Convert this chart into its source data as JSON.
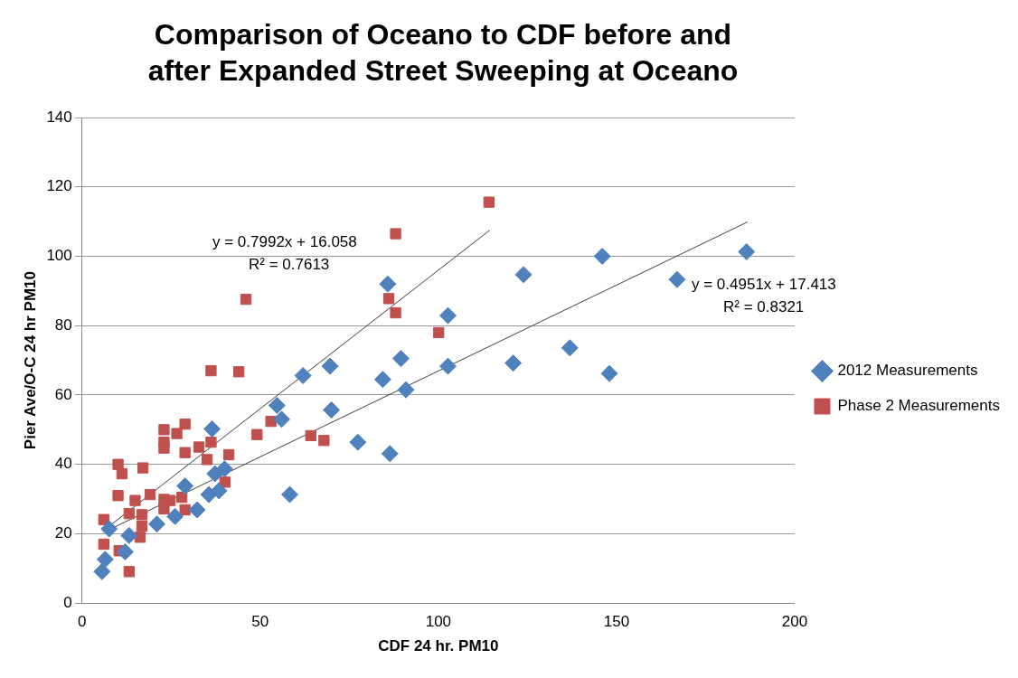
{
  "chart_data": {
    "type": "scatter",
    "title": "Comparison of Oceano to CDF before and after Expanded Street Sweeping at Oceano",
    "xlabel": "CDF 24 hr. PM10",
    "ylabel": "Pier Ave/O-C 24 hr PM10",
    "xlim": [
      0,
      200
    ],
    "xticks": [
      0,
      50,
      100,
      150,
      200
    ],
    "ylim": [
      0,
      140
    ],
    "yticks": [
      0,
      20,
      40,
      60,
      80,
      100,
      120,
      140
    ],
    "grid": "y",
    "legend": "right",
    "series": [
      {
        "name": "2012 Measurements",
        "color": "#4f81bd",
        "marker": "diamond",
        "x": [
          5.6,
          6.5,
          7.6,
          12.1,
          13.2,
          21,
          26.1,
          32.3,
          28.9,
          35.6,
          38.4,
          36.5,
          37.3,
          40,
          54.7,
          56,
          58.3,
          62,
          69.6,
          70,
          77.4,
          84.4,
          86.4,
          85.8,
          89.5,
          90.9,
          102.7,
          102.7,
          121,
          123.9,
          136.9,
          146,
          148,
          167,
          186.5
        ],
        "values": [
          9.1,
          12.6,
          21.4,
          14.8,
          19.5,
          22.8,
          25,
          26.9,
          33.8,
          31.3,
          32.4,
          50.2,
          37.3,
          38.7,
          57,
          53,
          31.3,
          65.6,
          68.3,
          55.7,
          46.4,
          64.5,
          43.1,
          92,
          70.5,
          61.5,
          82.9,
          68.3,
          69.2,
          94.7,
          73.6,
          100,
          66.2,
          93.3,
          101.3
        ]
      },
      {
        "name": "Phase 2 Measurements",
        "color": "#c0504d",
        "marker": "square",
        "x": [
          6.1,
          6.1,
          10.1,
          11.2,
          17.1,
          10.1,
          23,
          23,
          28.9,
          26.6,
          23,
          28.9,
          32.8,
          36.2,
          35.1,
          41.2,
          40.1,
          53,
          49.1,
          13.2,
          10.4,
          16.3,
          16.8,
          16.8,
          13.2,
          14.9,
          19.1,
          23,
          23,
          24.7,
          28,
          28.9,
          36.2,
          44,
          46,
          64.2,
          67.9,
          86.1,
          88,
          88,
          100.1,
          114.2
        ],
        "values": [
          24.1,
          17,
          40,
          37.3,
          39,
          31,
          50,
          46.4,
          51.6,
          48.9,
          44.7,
          43.4,
          45,
          46.4,
          41.4,
          42.8,
          34.9,
          52.4,
          48.6,
          9.1,
          15.1,
          19,
          22.2,
          25.5,
          25.8,
          29.6,
          31.3,
          27.2,
          29.9,
          29.6,
          30.5,
          26.9,
          67,
          66.7,
          87.6,
          48.3,
          46.9,
          87.8,
          106.5,
          83.7,
          78,
          115.6
        ]
      },
      {
        "type": "line",
        "color": "#404040",
        "marker": "none",
        "x": [
          6,
          114.4
        ],
        "values": [
          20.9,
          107.5
        ]
      },
      {
        "type": "line",
        "color": "#404040",
        "marker": "none",
        "x": [
          6,
          186.8
        ],
        "values": [
          20.4,
          109.9
        ]
      }
    ],
    "annotations": [
      "y = 0.7992x + 16.058",
      "R² = 0.7613",
      "y = 0.4951x + 17.413",
      "R² = 0.8321"
    ]
  }
}
